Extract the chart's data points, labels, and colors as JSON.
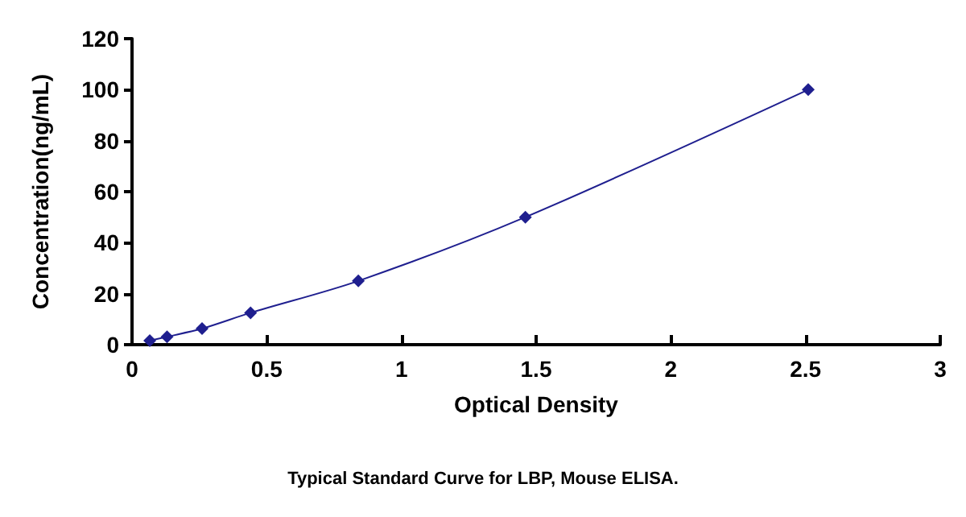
{
  "chart_data": {
    "type": "line",
    "xlabel": "Optical Density",
    "ylabel": "Concentration(ng/mL)",
    "annotations": [
      "Typical Standard Curve for LBP, Mouse ELISA."
    ],
    "x": [
      0.066,
      0.13,
      0.26,
      0.44,
      0.84,
      1.46,
      2.51
    ],
    "series": [
      {
        "color": "#1f1f8f",
        "values": [
          1.6,
          3.1,
          6.3,
          12.5,
          25,
          50,
          100
        ]
      }
    ],
    "xlim": [
      0,
      3
    ],
    "xticks": [
      0,
      0.5,
      1,
      1.5,
      2,
      2.5,
      3
    ],
    "ylim": [
      0,
      120
    ],
    "yticks": [
      0,
      20,
      40,
      60,
      80,
      100,
      120
    ],
    "grid": false,
    "marker": "diamond",
    "line_style": "solid"
  }
}
